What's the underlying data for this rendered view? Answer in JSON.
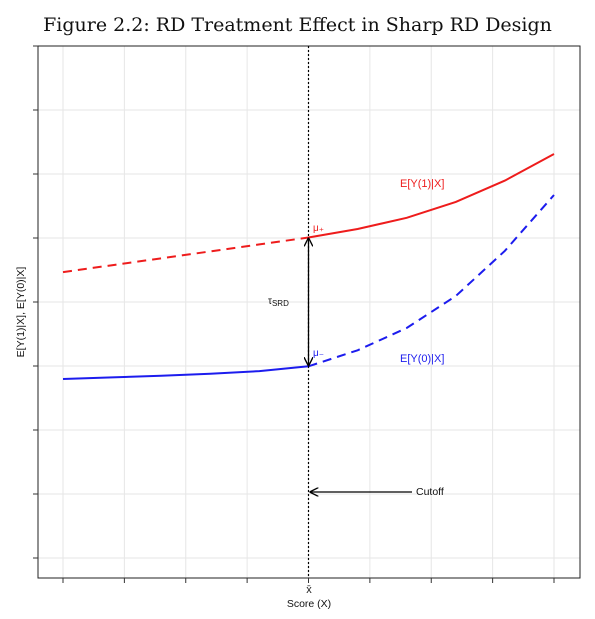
{
  "title": "Figure 2.2: RD Treatment Effect in Sharp RD Design",
  "chart_data": {
    "type": "line",
    "title": "Figure 2.2: RD Treatment Effect in Sharp RD Design",
    "xlabel": "Score (X)",
    "ylabel": "E[Y(1)|X], E[Y(0)|X]",
    "x_tick_labels": [
      "x̄"
    ],
    "cutoff": 0.5,
    "xlim": [
      0,
      1
    ],
    "ylim": [
      0,
      1
    ],
    "grid": true,
    "series": [
      {
        "name": "E[Y(1)|X]",
        "color": "#ee1c1c",
        "x": [
          0,
          0.1,
          0.2,
          0.3,
          0.4,
          0.5,
          0.6,
          0.7,
          0.8,
          0.9,
          1.0
        ],
        "y": [
          0.575,
          0.588,
          0.601,
          0.614,
          0.627,
          0.64,
          0.656,
          0.677,
          0.707,
          0.747,
          0.797
        ],
        "styles": {
          "left_of_cutoff": "dashed",
          "right_of_cutoff": "solid"
        }
      },
      {
        "name": "E[Y(0)|X]",
        "color": "#1c1cee",
        "x": [
          0,
          0.1,
          0.2,
          0.3,
          0.4,
          0.5,
          0.6,
          0.7,
          0.8,
          0.9,
          1.0
        ],
        "y": [
          0.374,
          0.377,
          0.38,
          0.384,
          0.389,
          0.398,
          0.428,
          0.47,
          0.53,
          0.615,
          0.72
        ],
        "styles": {
          "left_of_cutoff": "solid",
          "right_of_cutoff": "dashed"
        }
      }
    ],
    "annotations": {
      "mu_plus": "μ₊",
      "mu_minus": "μ₋",
      "tau": "τ",
      "tau_sub": "SRD",
      "cutoff": "Cutoff"
    }
  }
}
